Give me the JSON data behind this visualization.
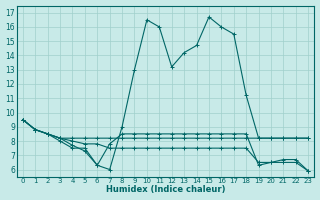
{
  "xlabel": "Humidex (Indice chaleur)",
  "background_color": "#c8eae8",
  "line_color": "#006666",
  "grid_color": "#a0d0cc",
  "xlim": [
    -0.5,
    23.5
  ],
  "ylim": [
    5.5,
    17.5
  ],
  "xticks": [
    0,
    1,
    2,
    3,
    4,
    5,
    6,
    7,
    8,
    9,
    10,
    11,
    12,
    13,
    14,
    15,
    16,
    17,
    18,
    19,
    20,
    21,
    22,
    23
  ],
  "yticks": [
    6,
    7,
    8,
    9,
    10,
    11,
    12,
    13,
    14,
    15,
    16,
    17
  ],
  "series1_x": [
    0,
    1,
    2,
    3,
    4,
    5,
    6,
    7,
    8,
    9,
    10,
    11,
    12,
    13,
    14,
    15,
    16,
    17,
    18,
    19,
    20,
    21,
    22,
    23
  ],
  "series1_y": [
    9.5,
    8.8,
    8.5,
    8.2,
    8.2,
    8.2,
    8.2,
    8.2,
    8.2,
    8.2,
    8.2,
    8.2,
    8.2,
    8.2,
    8.2,
    8.2,
    8.2,
    8.2,
    8.2,
    8.2,
    8.2,
    8.2,
    8.2,
    8.2
  ],
  "series2_x": [
    0,
    1,
    2,
    3,
    4,
    5,
    6,
    7,
    8,
    9,
    10,
    11,
    12,
    13,
    14,
    15,
    16,
    17,
    18,
    19,
    20,
    21,
    22,
    23
  ],
  "series2_y": [
    9.5,
    8.8,
    8.5,
    8.0,
    7.5,
    7.5,
    6.3,
    6.0,
    9.0,
    13.0,
    16.5,
    16.0,
    13.2,
    14.2,
    14.7,
    16.7,
    16.0,
    15.5,
    11.2,
    8.2,
    8.2,
    8.2,
    8.2,
    8.2
  ],
  "series3_x": [
    0,
    1,
    2,
    3,
    4,
    5,
    6,
    7,
    8,
    9,
    10,
    11,
    12,
    13,
    14,
    15,
    16,
    17,
    18,
    19,
    20,
    21,
    22,
    23
  ],
  "series3_y": [
    9.5,
    8.8,
    8.5,
    8.2,
    8.0,
    7.8,
    7.8,
    7.5,
    7.5,
    7.5,
    7.5,
    7.5,
    7.5,
    7.5,
    7.5,
    7.5,
    7.5,
    7.5,
    7.5,
    6.5,
    6.5,
    6.7,
    6.7,
    5.9
  ],
  "series4_x": [
    0,
    1,
    2,
    3,
    4,
    5,
    6,
    7,
    8,
    9,
    10,
    11,
    12,
    13,
    14,
    15,
    16,
    17,
    18,
    19,
    20,
    21,
    22,
    23
  ],
  "series4_y": [
    9.5,
    8.8,
    8.5,
    8.2,
    7.7,
    7.3,
    6.3,
    7.8,
    8.5,
    8.5,
    8.5,
    8.5,
    8.5,
    8.5,
    8.5,
    8.5,
    8.5,
    8.5,
    8.5,
    6.3,
    6.5,
    6.5,
    6.5,
    5.9
  ]
}
